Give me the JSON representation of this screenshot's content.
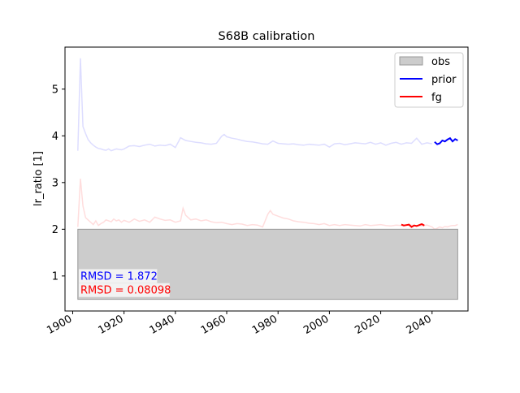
{
  "chart_data": {
    "type": "line",
    "title": "S68B calibration",
    "xlabel": "",
    "ylabel": "lr_ratio [1]",
    "xlim": [
      1897,
      2054
    ],
    "ylim": [
      0.25,
      5.9
    ],
    "xticks": [
      1900,
      1920,
      1940,
      1960,
      1980,
      2000,
      2020,
      2040
    ],
    "yticks": [
      1,
      2,
      3,
      4,
      5
    ],
    "grid": false,
    "legend_position": "top-right",
    "obs_box": {
      "x_range": [
        1902,
        2050
      ],
      "y_range": [
        0.5,
        2.0
      ]
    },
    "series": [
      {
        "name": "obs",
        "style": "box",
        "color": "#cccccc",
        "x_range": [
          1902,
          2050
        ],
        "y_range": [
          0.5,
          2.0
        ]
      },
      {
        "name": "prior",
        "color": "#0000ff",
        "x": [
          2041,
          2042,
          2043,
          2044,
          2045,
          2046,
          2047,
          2048,
          2049,
          2050
        ],
        "y": [
          3.87,
          3.82,
          3.84,
          3.9,
          3.88,
          3.92,
          3.95,
          3.88,
          3.93,
          3.9
        ]
      },
      {
        "name": "fg",
        "color": "#ff0000",
        "x": [
          2028,
          2029,
          2030,
          2031,
          2032,
          2033,
          2034,
          2035,
          2036,
          2037
        ],
        "y": [
          2.1,
          2.08,
          2.09,
          2.1,
          2.05,
          2.08,
          2.07,
          2.09,
          2.11,
          2.08
        ]
      }
    ],
    "background_series": [
      {
        "color": "#ddddff",
        "x": [
          1902,
          1903,
          1904,
          1905,
          1906,
          1907,
          1908,
          1909,
          1910,
          1911,
          1912,
          1913,
          1914,
          1915,
          1916,
          1917,
          1918,
          1919,
          1920,
          1922,
          1924,
          1926,
          1928,
          1930,
          1932,
          1934,
          1936,
          1938,
          1940,
          1942,
          1943,
          1944,
          1946,
          1948,
          1950,
          1952,
          1954,
          1956,
          1958,
          1959,
          1960,
          1962,
          1964,
          1966,
          1968,
          1970,
          1972,
          1974,
          1976,
          1978,
          1980,
          1982,
          1984,
          1986,
          1988,
          1990,
          1992,
          1994,
          1996,
          1998,
          2000,
          2002,
          2004,
          2006,
          2008,
          2010,
          2012,
          2014,
          2016,
          2018,
          2020,
          2022,
          2024,
          2026,
          2028,
          2030,
          2032,
          2034,
          2036,
          2038,
          2040
        ],
        "y": [
          3.68,
          5.66,
          4.2,
          4.05,
          3.92,
          3.85,
          3.8,
          3.76,
          3.73,
          3.72,
          3.7,
          3.69,
          3.72,
          3.68,
          3.7,
          3.72,
          3.71,
          3.7,
          3.72,
          3.78,
          3.79,
          3.77,
          3.8,
          3.82,
          3.78,
          3.8,
          3.79,
          3.82,
          3.75,
          3.96,
          3.93,
          3.9,
          3.88,
          3.86,
          3.85,
          3.83,
          3.82,
          3.84,
          3.99,
          4.03,
          3.98,
          3.95,
          3.93,
          3.9,
          3.88,
          3.87,
          3.85,
          3.83,
          3.82,
          3.89,
          3.84,
          3.83,
          3.82,
          3.83,
          3.81,
          3.8,
          3.82,
          3.81,
          3.8,
          3.82,
          3.76,
          3.83,
          3.84,
          3.81,
          3.83,
          3.85,
          3.84,
          3.83,
          3.86,
          3.82,
          3.85,
          3.8,
          3.84,
          3.86,
          3.82,
          3.85,
          3.84,
          3.95,
          3.82,
          3.85,
          3.83
        ]
      },
      {
        "color": "#ffdddd",
        "x": [
          1902,
          1903,
          1904,
          1905,
          1906,
          1907,
          1908,
          1909,
          1910,
          1911,
          1912,
          1913,
          1914,
          1915,
          1916,
          1917,
          1918,
          1919,
          1920,
          1922,
          1924,
          1926,
          1928,
          1930,
          1932,
          1934,
          1936,
          1938,
          1940,
          1942,
          1943,
          1944,
          1946,
          1948,
          1950,
          1952,
          1954,
          1956,
          1958,
          1960,
          1962,
          1964,
          1966,
          1968,
          1970,
          1972,
          1974,
          1976,
          1977,
          1978,
          1980,
          1982,
          1984,
          1986,
          1988,
          1990,
          1992,
          1994,
          1996,
          1998,
          2000,
          2002,
          2004,
          2006,
          2008,
          2010,
          2012,
          2014,
          2016,
          2018,
          2020,
          2022,
          2024,
          2026,
          2028,
          2030,
          2032,
          2034,
          2036,
          2038,
          2040,
          2041,
          2042,
          2043,
          2044,
          2045,
          2046,
          2047,
          2048,
          2049,
          2050
        ],
        "y": [
          2.05,
          3.08,
          2.5,
          2.25,
          2.2,
          2.15,
          2.1,
          2.18,
          2.08,
          2.12,
          2.15,
          2.2,
          2.18,
          2.16,
          2.22,
          2.18,
          2.2,
          2.15,
          2.19,
          2.15,
          2.22,
          2.17,
          2.2,
          2.15,
          2.26,
          2.22,
          2.19,
          2.2,
          2.15,
          2.18,
          2.45,
          2.3,
          2.2,
          2.22,
          2.18,
          2.2,
          2.16,
          2.14,
          2.15,
          2.12,
          2.1,
          2.12,
          2.11,
          2.08,
          2.1,
          2.09,
          2.05,
          2.32,
          2.4,
          2.32,
          2.28,
          2.24,
          2.22,
          2.18,
          2.16,
          2.15,
          2.13,
          2.12,
          2.1,
          2.12,
          2.08,
          2.1,
          2.08,
          2.1,
          2.09,
          2.08,
          2.07,
          2.1,
          2.08,
          2.09,
          2.1,
          2.08,
          2.07,
          2.09,
          2.08,
          2.1,
          2.09,
          2.08,
          2.07,
          2.09,
          2.05,
          2.0,
          2.02,
          2.05,
          2.03,
          2.06,
          2.05,
          2.07,
          2.08,
          2.08,
          2.1
        ]
      }
    ],
    "annotations": [
      {
        "text": "RMSD = 1.872",
        "color": "#0000ff",
        "x": 1903,
        "y": 0.92
      },
      {
        "text": "RMSD = 0.08098",
        "color": "#ff0000",
        "x": 1903,
        "y": 0.62
      }
    ]
  }
}
